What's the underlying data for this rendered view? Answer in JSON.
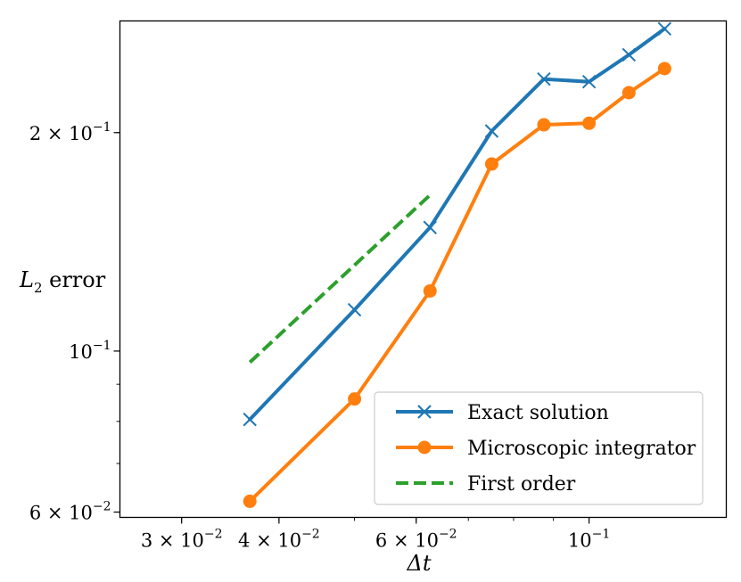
{
  "chart_data": {
    "type": "line",
    "xscale": "log",
    "yscale": "log",
    "xlabel": "Δt",
    "ylabel_main": "L",
    "ylabel_sub": "2",
    "ylabel_rest": " error",
    "xlim": [
      0.025,
      0.15
    ],
    "ylim": [
      0.059,
      0.285
    ],
    "xticks": [
      {
        "value": 0.03,
        "mantissa": "3 × 10",
        "exp": "−2"
      },
      {
        "value": 0.04,
        "mantissa": "4 × 10",
        "exp": "−2"
      },
      {
        "value": 0.06,
        "mantissa": "6 × 10",
        "exp": "−2"
      },
      {
        "value": 0.1,
        "mantissa": "10",
        "exp": "−1"
      }
    ],
    "yticks": [
      {
        "value": 0.06,
        "mantissa": "6 × 10",
        "exp": "−2"
      },
      {
        "value": 0.1,
        "mantissa": "10",
        "exp": "−1"
      },
      {
        "value": 0.2,
        "mantissa": "2 × 10",
        "exp": "−1"
      }
    ],
    "series": [
      {
        "name": "Exact solution",
        "color": "#1f77b4",
        "marker": "x",
        "x": [
          0.0367,
          0.05,
          0.0625,
          0.075,
          0.0875,
          0.1,
          0.1125,
          0.125
        ],
        "y": [
          0.0805,
          0.114,
          0.148,
          0.201,
          0.237,
          0.235,
          0.256,
          0.278
        ]
      },
      {
        "name": "Microscopic integrator",
        "color": "#ff7f0e",
        "marker": "o",
        "x": [
          0.0367,
          0.05,
          0.0625,
          0.075,
          0.0875,
          0.1,
          0.1125,
          0.125
        ],
        "y": [
          0.0621,
          0.0859,
          0.121,
          0.181,
          0.205,
          0.206,
          0.227,
          0.245
        ]
      },
      {
        "name": "First order",
        "color": "#2ca02c",
        "marker": "none",
        "dashed": true,
        "x": [
          0.0367,
          0.0625
        ],
        "y": [
          0.0965,
          0.164
        ]
      }
    ],
    "legend_position": "lower-right"
  }
}
